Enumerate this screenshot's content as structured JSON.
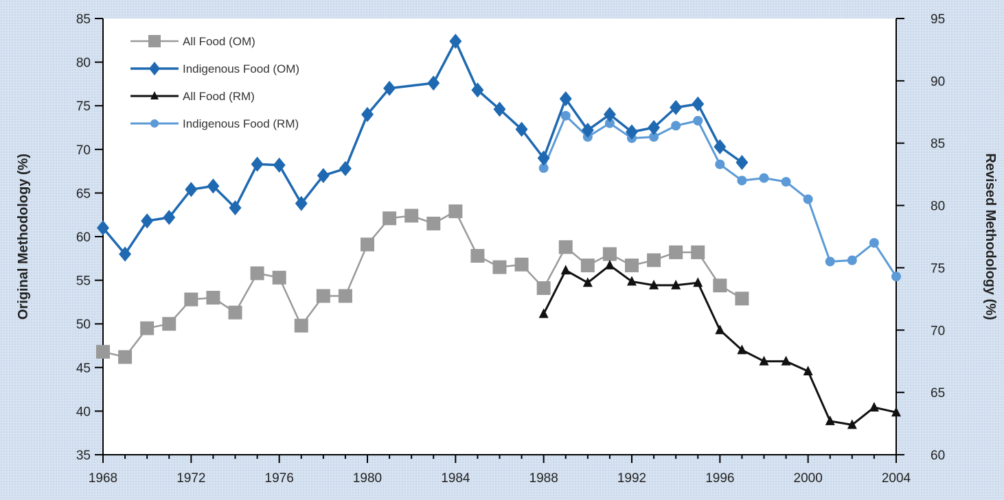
{
  "chart_data": {
    "type": "line",
    "title": "",
    "xlabel": "",
    "ylabel_left": "Original Methodology (%)",
    "ylabel_right": "Revised Methodology (%)",
    "x_ticks": [
      1968,
      1972,
      1976,
      1980,
      1984,
      1988,
      1992,
      1996,
      2000,
      2004
    ],
    "x_tick_labels": [
      "1968",
      "1972",
      "1976",
      "1980",
      "1984",
      "1988",
      "1992",
      "1996",
      "2000",
      "2004"
    ],
    "xlim": [
      1968,
      2004
    ],
    "ylim_left": [
      35,
      85
    ],
    "ylim_right": [
      60,
      95
    ],
    "y_left_ticks": [
      35,
      40,
      45,
      50,
      55,
      60,
      65,
      70,
      75,
      80,
      85
    ],
    "y_right_ticks": [
      60,
      65,
      70,
      75,
      80,
      85,
      90,
      95
    ],
    "grid": false,
    "legend_position": "top-left",
    "series": [
      {
        "name": "All Food (OM)",
        "axis": "left",
        "color": "#999999",
        "marker": "square",
        "x": [
          1968,
          1969,
          1970,
          1971,
          1972,
          1973,
          1974,
          1975,
          1976,
          1977,
          1978,
          1979,
          1980,
          1981,
          1982,
          1983,
          1984,
          1985,
          1986,
          1987,
          1988,
          1989,
          1990,
          1991,
          1992,
          1993,
          1994,
          1995,
          1996,
          1997
        ],
        "y": [
          46.8,
          46.2,
          49.5,
          50.0,
          52.8,
          53.0,
          51.3,
          55.8,
          55.3,
          49.8,
          53.2,
          53.2,
          59.1,
          62.1,
          62.4,
          61.5,
          62.9,
          57.8,
          56.5,
          56.8,
          54.1,
          58.8,
          56.7,
          58.0,
          56.7,
          57.3,
          58.2,
          58.2,
          54.4,
          52.9
        ]
      },
      {
        "name": "Indigenous Food (OM)",
        "axis": "left",
        "color": "#1e69b1",
        "marker": "diamond",
        "x": [
          1968,
          1969,
          1970,
          1971,
          1972,
          1973,
          1974,
          1975,
          1976,
          1977,
          1978,
          1979,
          1980,
          1981,
          1983,
          1984,
          1985,
          1986,
          1987,
          1988,
          1989,
          1990,
          1991,
          1992,
          1993,
          1994,
          1995,
          1996,
          1997
        ],
        "y": [
          61.0,
          58.0,
          61.8,
          62.2,
          65.4,
          65.8,
          63.3,
          68.3,
          68.2,
          63.8,
          67.0,
          67.8,
          74.0,
          77.0,
          77.6,
          82.4,
          76.8,
          74.6,
          72.3,
          69.0,
          75.8,
          72.2,
          74.0,
          72.0,
          72.5,
          74.8,
          75.2,
          70.3,
          68.5
        ]
      },
      {
        "name": "All Food (RM)",
        "axis": "right",
        "color": "#111111",
        "marker": "triangle",
        "x": [
          1988,
          1989,
          1990,
          1991,
          1992,
          1993,
          1994,
          1995,
          1996,
          1997,
          1998,
          1999,
          2000,
          2001,
          2002,
          2003,
          2004
        ],
        "y": [
          71.3,
          74.8,
          73.8,
          75.2,
          73.9,
          73.6,
          73.6,
          73.8,
          70.0,
          68.4,
          67.5,
          67.5,
          66.7,
          62.7,
          62.4,
          63.8,
          63.4
        ]
      },
      {
        "name": "Indigenous Food (RM)",
        "axis": "right",
        "color": "#5b9ad6",
        "marker": "circle",
        "x": [
          1988,
          1989,
          1990,
          1991,
          1992,
          1993,
          1994,
          1995,
          1996,
          1997,
          1998,
          1999,
          2000,
          2001,
          2002,
          2003,
          2004
        ],
        "y": [
          83.0,
          87.2,
          85.5,
          86.6,
          85.4,
          85.5,
          86.4,
          86.8,
          83.3,
          82.0,
          82.2,
          81.9,
          80.5,
          75.5,
          75.6,
          77.0,
          74.3
        ]
      }
    ]
  }
}
